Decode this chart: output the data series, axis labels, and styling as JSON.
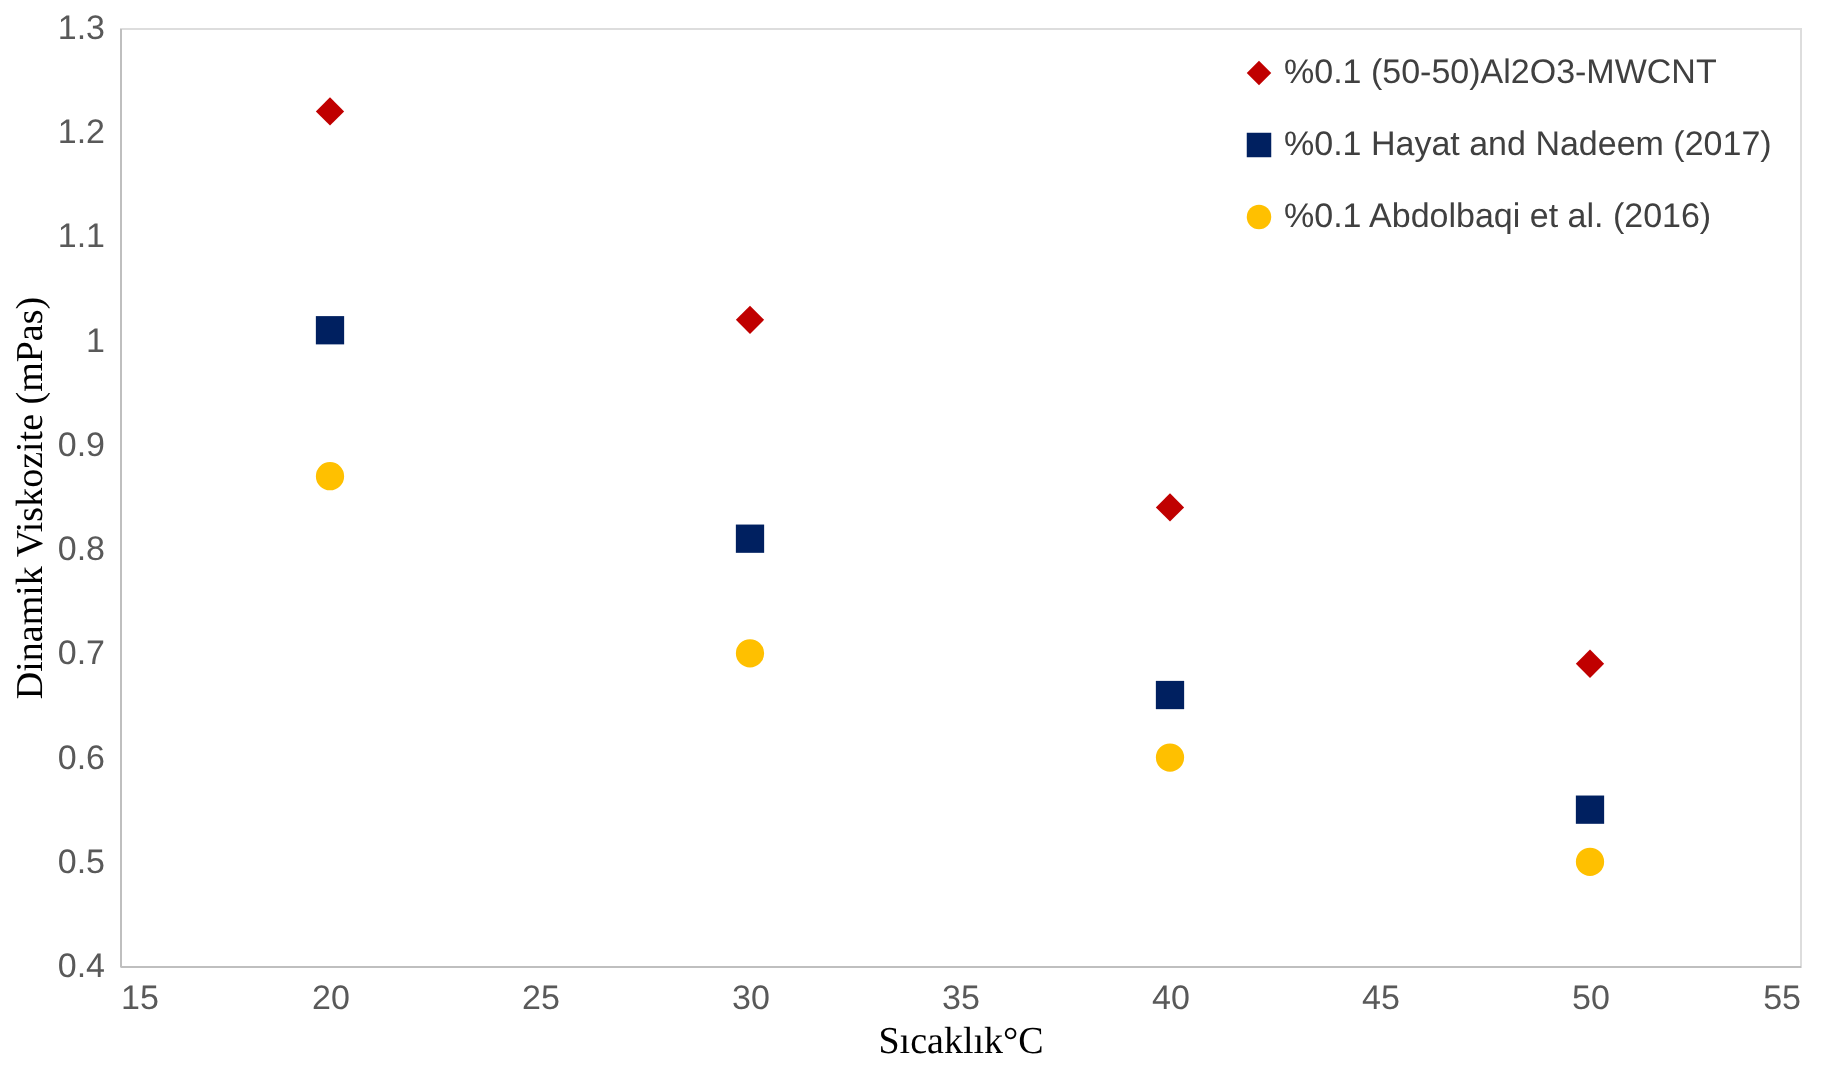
{
  "chart_data": {
    "type": "scatter",
    "xlabel": "Sıcaklık°C",
    "ylabel": "Dinamik Viskozite (mPas)",
    "x": [
      20,
      30,
      40,
      50
    ],
    "series": [
      {
        "name": "%0.1 (50-50)Al2O3-MWCNT",
        "color": "#c00000",
        "marker": "diamond",
        "values": [
          1.22,
          1.02,
          0.84,
          0.69
        ]
      },
      {
        "name": "%0.1 Hayat and Nadeem (2017)",
        "color": "#002060",
        "marker": "square",
        "values": [
          1.01,
          0.81,
          0.66,
          0.55
        ]
      },
      {
        "name": "%0.1 Abdolbaqi et al. (2016)",
        "color": "#ffc000",
        "marker": "circle",
        "values": [
          0.87,
          0.7,
          0.6,
          0.5
        ]
      }
    ],
    "xlim": [
      15,
      55
    ],
    "xticks": [
      15,
      20,
      25,
      30,
      35,
      40,
      45,
      50,
      55
    ],
    "ylim": [
      0.4,
      1.3
    ],
    "yticks": [
      0.4,
      0.5,
      0.6,
      0.7,
      0.8,
      0.9,
      1,
      1.1,
      1.2,
      1.3
    ],
    "grid": false,
    "legend": "top right"
  }
}
